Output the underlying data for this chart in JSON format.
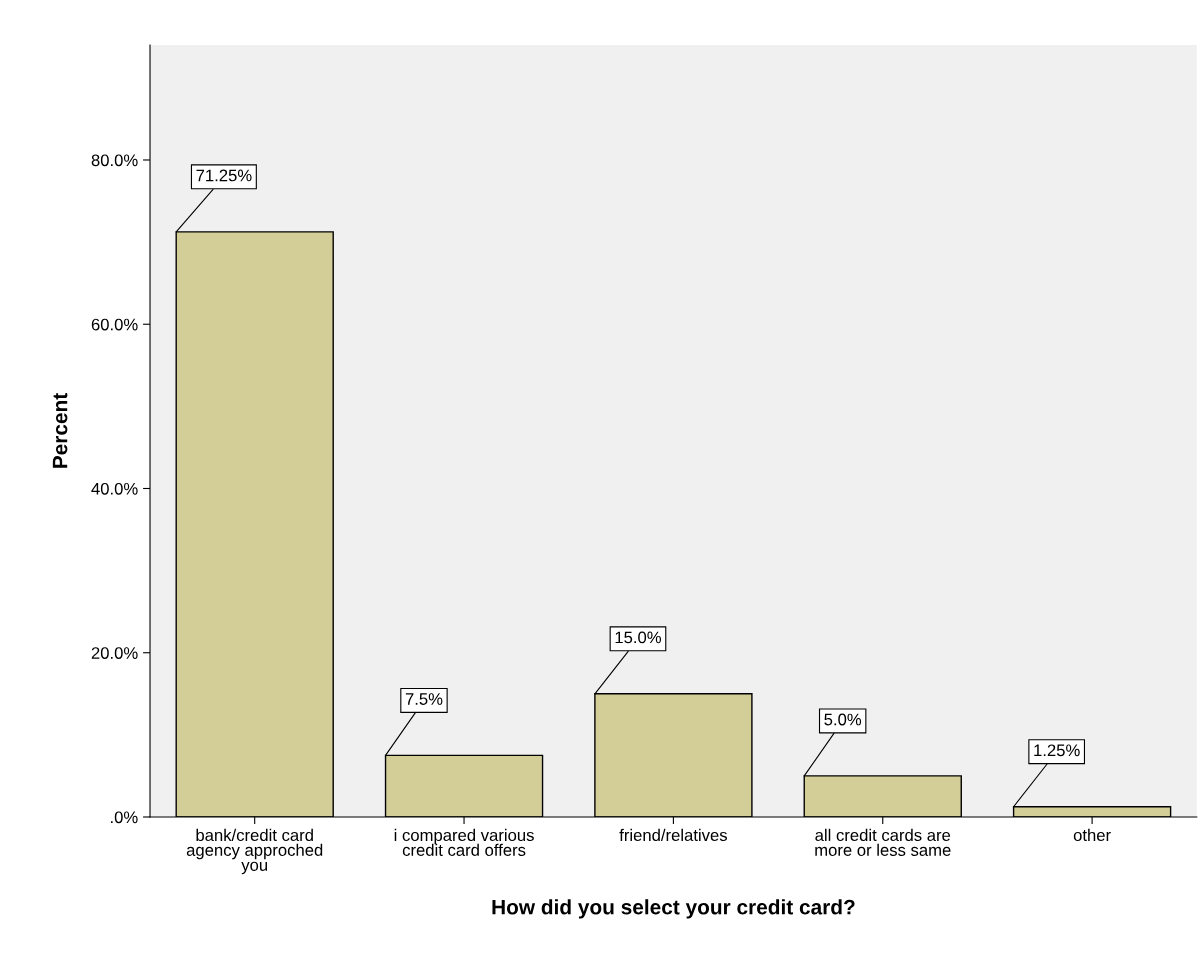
{
  "chart_data": {
    "type": "bar",
    "xlabel": "How did you select your credit card?",
    "ylabel": "Percent",
    "categories": [
      "bank/credit card\nagency approched\nyou",
      "i compared various\ncredit card offers",
      "friend/relatives",
      "all credit cards are\nmore or less same",
      "other"
    ],
    "values": [
      71.25,
      7.5,
      15.0,
      5.0,
      1.25
    ],
    "value_labels": [
      "71.25%",
      "7.5%",
      "15.0%",
      "5.0%",
      "1.25%"
    ],
    "color": "#d3ce97",
    "ylim": [
      0,
      94
    ],
    "yticks": [
      {
        "value": 0,
        "label": ".0%"
      },
      {
        "value": 20,
        "label": "20.0%"
      },
      {
        "value": 40,
        "label": "40.0%"
      },
      {
        "value": 60,
        "label": "60.0%"
      },
      {
        "value": 80,
        "label": "80.0%"
      }
    ],
    "grid": false,
    "legend": false
  }
}
